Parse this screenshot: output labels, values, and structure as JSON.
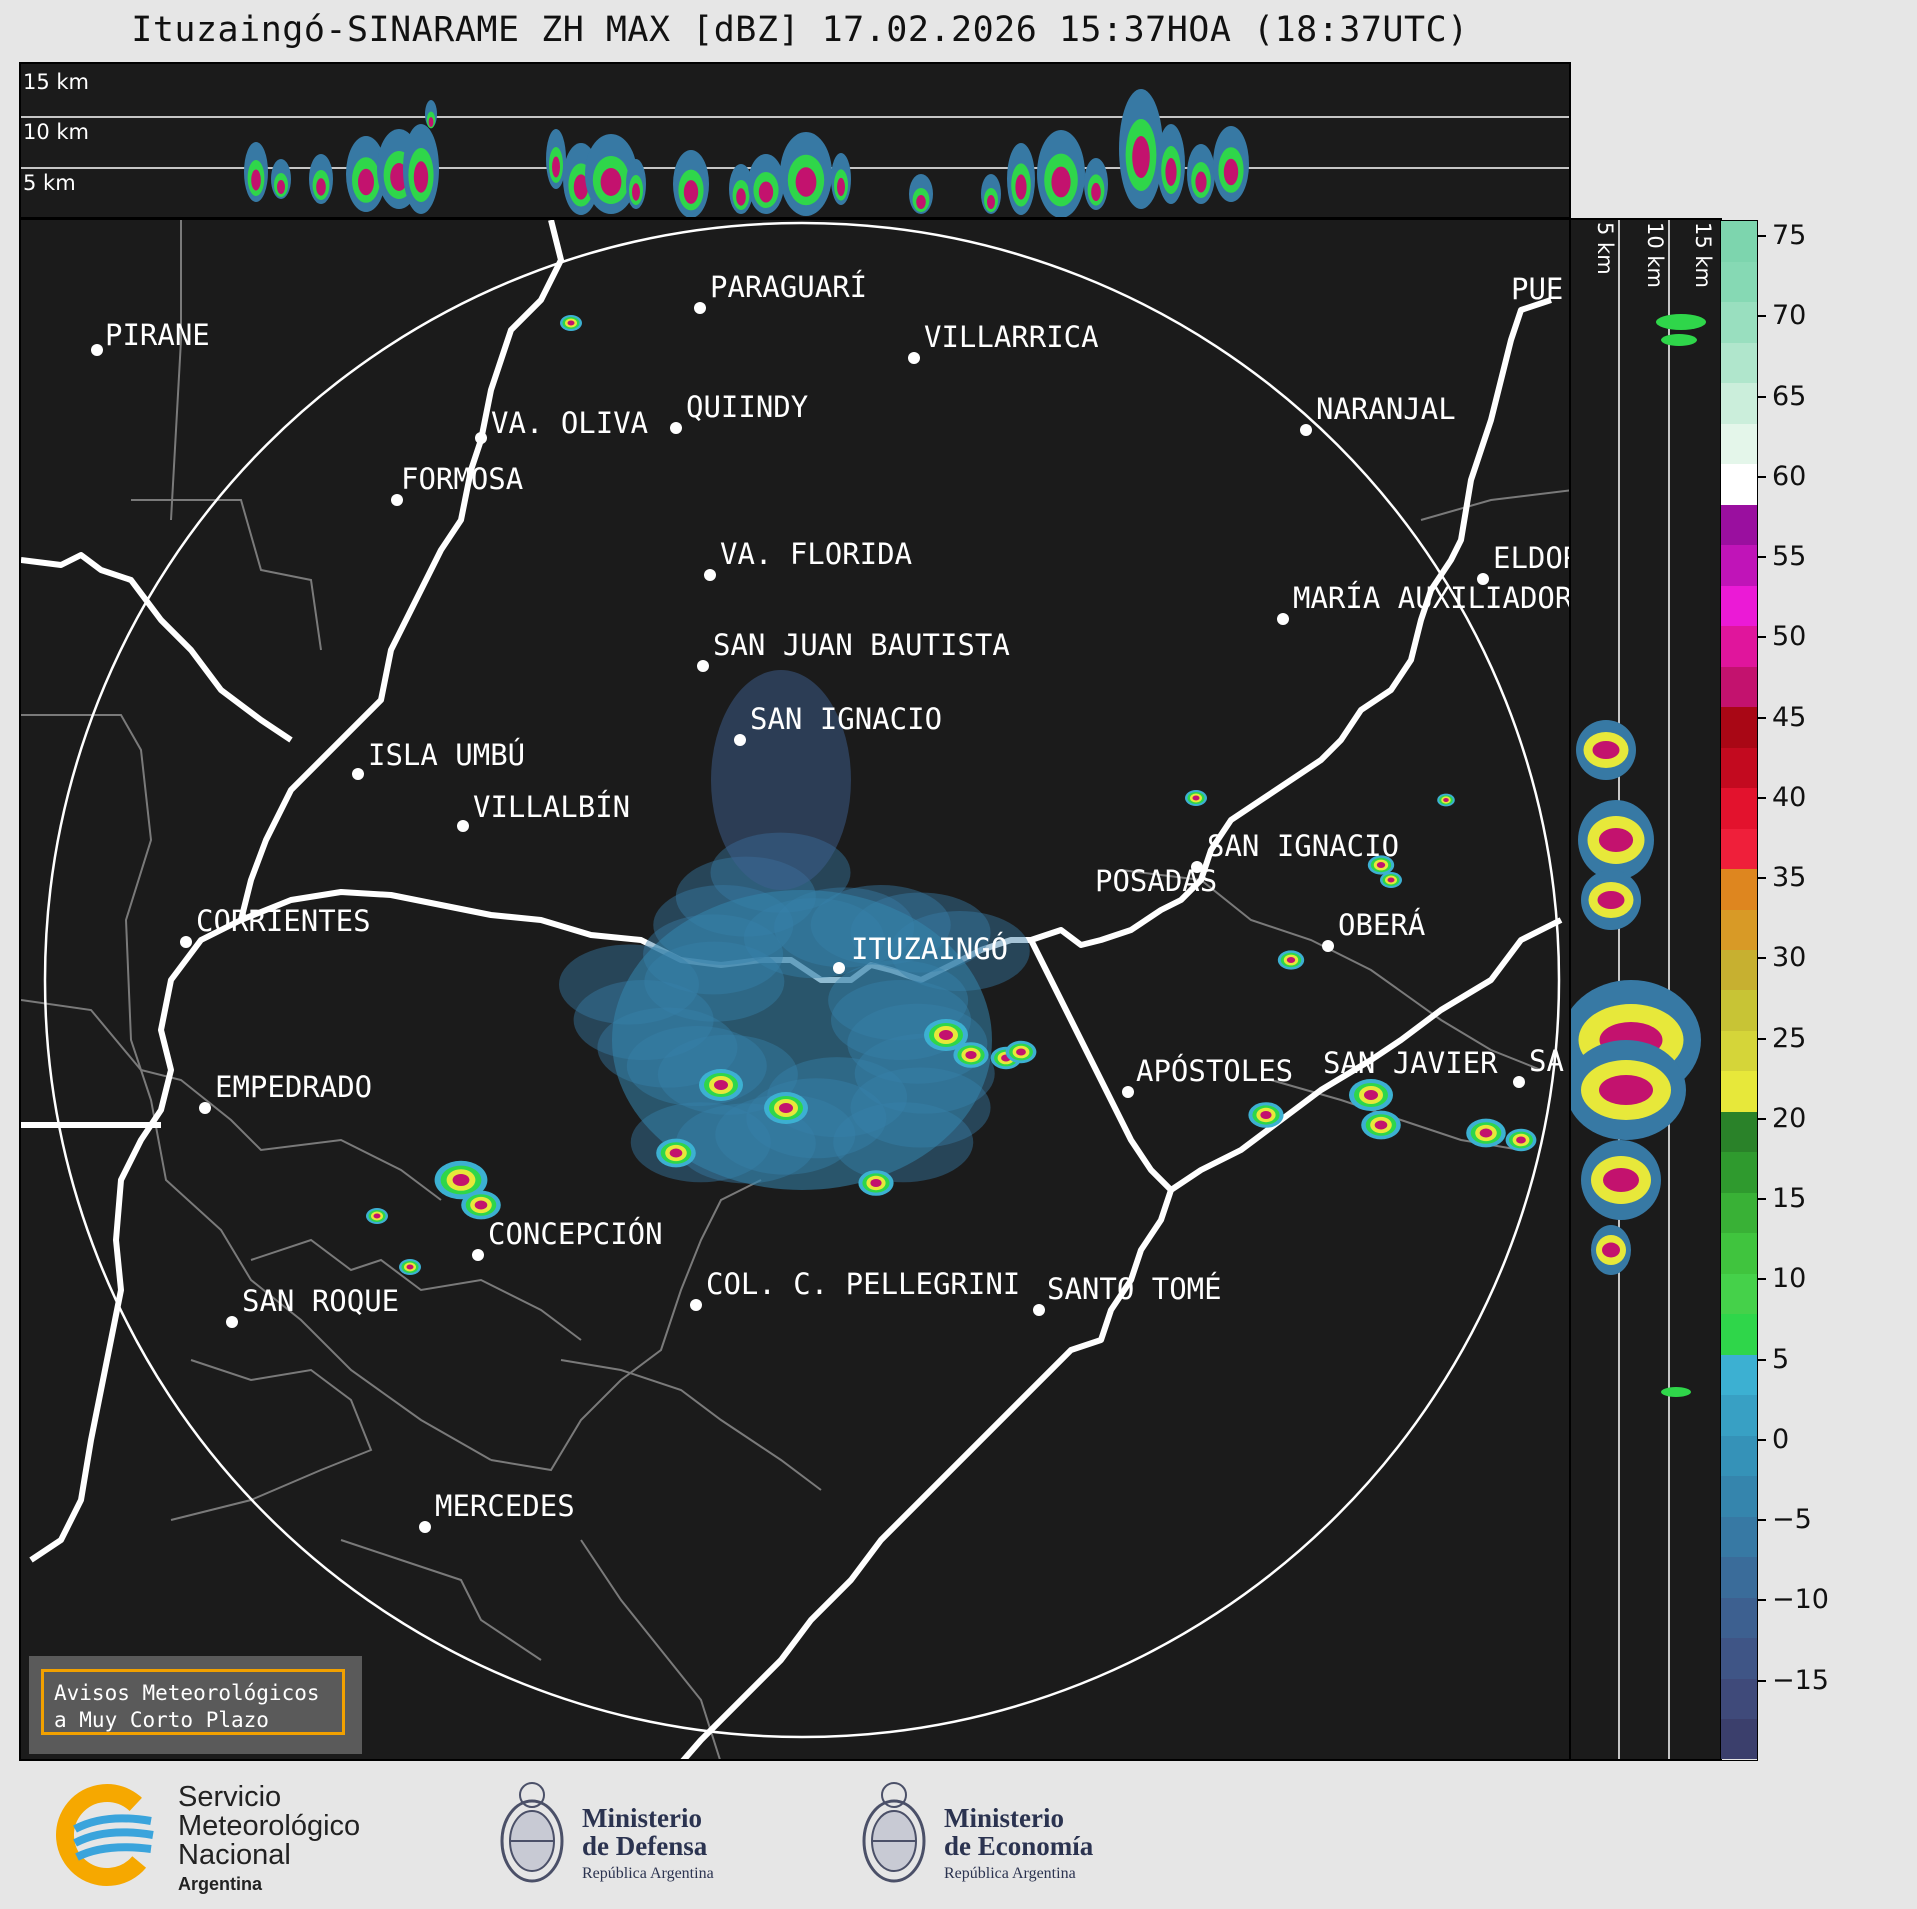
{
  "title": "Ituzaingó-SINARAME ZH MAX [dBZ] 17.02.2026 15:37HOA (18:37UTC)",
  "top_panel": {
    "height_labels": [
      "15 km",
      "10 km",
      "5 km"
    ]
  },
  "side_panel": {
    "height_labels": [
      "5 km",
      "10 km",
      "15 km"
    ]
  },
  "cities": [
    {
      "name": "PIRANE"
    },
    {
      "name": "PARAGUARÍ"
    },
    {
      "name": "VILLARRICA"
    },
    {
      "name": "VA. OLIVA"
    },
    {
      "name": "QUIINDY"
    },
    {
      "name": "FORMOSA"
    },
    {
      "name": "NARANJAL"
    },
    {
      "name": "PUE"
    },
    {
      "name": "VA. FLORIDA"
    },
    {
      "name": "ELDOR"
    },
    {
      "name": "MARÍA AUXILIADOR"
    },
    {
      "name": "SAN JUAN BAUTISTA"
    },
    {
      "name": "SAN IGNACIO"
    },
    {
      "name": "ISLA UMBÚ"
    },
    {
      "name": "VILLALBÍN"
    },
    {
      "name": "SAN IGNACIO"
    },
    {
      "name": "POSADAS"
    },
    {
      "name": "CORRIENTES"
    },
    {
      "name": "ITUZAINGÓ"
    },
    {
      "name": "OBERÁ"
    },
    {
      "name": "EMPEDRADO"
    },
    {
      "name": "APÓSTOLES"
    },
    {
      "name": "SAN JAVIER"
    },
    {
      "name": "SA"
    },
    {
      "name": "CONCEPCIÓN"
    },
    {
      "name": "SAN ROQUE"
    },
    {
      "name": "COL. C. PELLEGRINI"
    },
    {
      "name": "SANTO TOMÉ"
    },
    {
      "name": "MERCEDES"
    }
  ],
  "colorbar": {
    "ticks": [
      "75",
      "70",
      "65",
      "60",
      "55",
      "50",
      "45",
      "40",
      "35",
      "30",
      "25",
      "20",
      "15",
      "10",
      "5",
      "0",
      "−5",
      "−10",
      "−15"
    ],
    "range": [
      -20,
      76
    ]
  },
  "warning": {
    "line1": "Avisos Meteorológicos",
    "line2": "a Muy Corto Plazo"
  },
  "footer": {
    "smn": {
      "line1": "Servicio",
      "line2": "Meteorológico",
      "line3": "Nacional",
      "line4": "Argentina"
    },
    "defensa": {
      "line1": "Ministerio",
      "line2": "de Defensa",
      "line3": "República Argentina"
    },
    "economia": {
      "line1": "Ministerio",
      "line2": "de Economía",
      "line3": "República Argentina"
    }
  }
}
